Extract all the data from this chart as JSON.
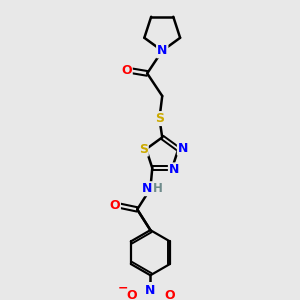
{
  "background_color": "#e8e8e8",
  "bond_color": "#000000",
  "atom_colors": {
    "N": "#0000ff",
    "O": "#ff0000",
    "S": "#ccaa00",
    "H": "#6e8b8b",
    "C": "#000000"
  },
  "figsize": [
    3.0,
    3.0
  ],
  "dpi": 100
}
